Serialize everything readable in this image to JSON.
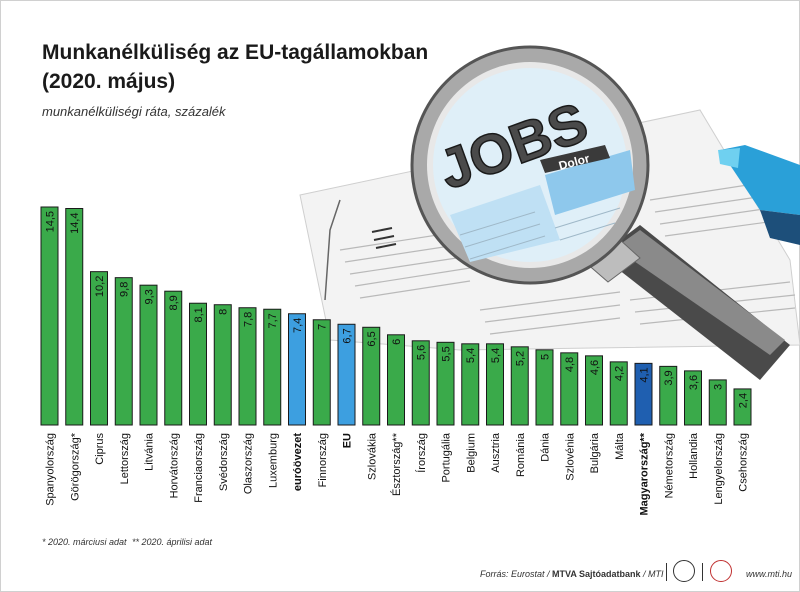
{
  "header": {
    "title_line1": "Munkanélküliség az EU-tagállamokban",
    "title_line2": "(2020. május)",
    "subtitle": "munkanélküliségi ráta, százalék"
  },
  "chart_data": {
    "type": "bar",
    "title": "Munkanélküliség az EU-tagállamokban (2020. május)",
    "subtitle": "munkanélküliségi ráta, százalék",
    "ylim": [
      0,
      16
    ],
    "categories": [
      "Spanyolország",
      "Görögország*",
      "Ciprus",
      "Lettország",
      "Litvánia",
      "Horvátország",
      "Franciaország",
      "Svédország",
      "Olaszország",
      "Luxemburg",
      "euróövezet",
      "Finnország",
      "EU",
      "Szlovákia",
      "Észtország**",
      "Írország",
      "Portugália",
      "Belgium",
      "Ausztria",
      "Románia",
      "Dánia",
      "Szlovénia",
      "Bulgária",
      "Málta",
      "Magyarország**",
      "Németország",
      "Hollandia",
      "Lengyelország",
      "Csehország"
    ],
    "value_labels": [
      "14,5",
      "14,4",
      "10,2",
      "9,8",
      "9,3",
      "8,9",
      "8,1",
      "8",
      "7,8",
      "7,7",
      "7,4",
      "7",
      "6,7",
      "6,5",
      "6",
      "5,6",
      "5,5",
      "5,4",
      "5,4",
      "5,2",
      "5",
      "4,8",
      "4,6",
      "4,2",
      "4,1",
      "3,9",
      "3,6",
      "3",
      "2,4"
    ],
    "values": [
      14.5,
      14.4,
      10.2,
      9.8,
      9.3,
      8.9,
      8.1,
      8,
      7.8,
      7.7,
      7.4,
      7,
      6.7,
      6.5,
      6,
      5.6,
      5.5,
      5.4,
      5.4,
      5.2,
      5,
      4.8,
      4.6,
      4.2,
      4.1,
      3.9,
      3.6,
      3,
      2.4
    ],
    "highlight": {
      "euróövezet": "light-blue",
      "EU": "light-blue",
      "Magyarország**": "dark-blue"
    },
    "bold_categories": [
      "euróövezet",
      "EU",
      "Magyarország**"
    ]
  },
  "colors": {
    "default_bar": "#3aaa4a",
    "light_blue_bar": "#3d9fe0",
    "dark_blue_bar": "#1f5fb0",
    "bar_border": "#1a1a1a"
  },
  "footnotes": {
    "note1": "* 2020. márciusi adat",
    "note2": "** 2020. áprilisi adat"
  },
  "footer": {
    "source_prefix": "Forrás: Eurostat / ",
    "source_bold": "MTVA Sajtóadatbank",
    "source_suffix": " / MTI",
    "website": "www.mti.hu"
  },
  "illustration": {
    "jobs_text": "JOBS",
    "dolor_text": "Dolor"
  }
}
